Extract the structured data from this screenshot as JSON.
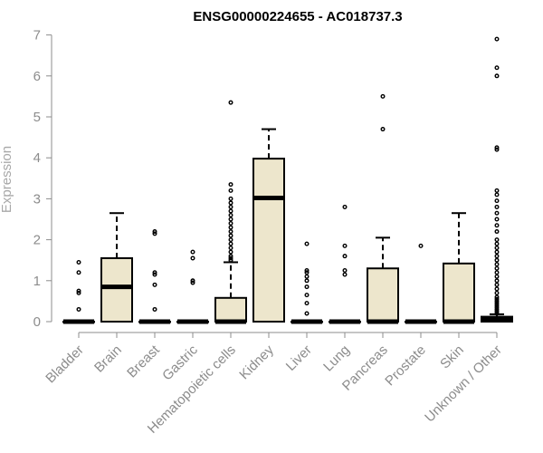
{
  "chart_data": {
    "type": "boxplot",
    "title": "ENSG00000224655 - AC018737.3",
    "ylabel": "Expression",
    "xlabel": "",
    "ylim": [
      0,
      7
    ],
    "yticks": [
      "0",
      "1",
      "2",
      "3",
      "4",
      "5",
      "6",
      "7"
    ],
    "box_fill": "#ede6cc",
    "categories": [
      "Bladder",
      "Brain",
      "Breast",
      "Gastric",
      "Hematopoietic cells",
      "Kidney",
      "Liver",
      "Lung",
      "Pancreas",
      "Prostate",
      "Skin",
      "Unknown / Other"
    ],
    "boxes": [
      {
        "q1": 0,
        "median": 0,
        "q3": 0,
        "whisker_low": 0,
        "whisker_high": 0,
        "outliers": [
          0.3,
          0.7,
          0.75,
          1.2,
          1.45
        ]
      },
      {
        "q1": 0,
        "median": 0.85,
        "q3": 1.55,
        "whisker_low": 0,
        "whisker_high": 2.65,
        "outliers": []
      },
      {
        "q1": 0,
        "median": 0,
        "q3": 0,
        "whisker_low": 0,
        "whisker_high": 0,
        "outliers": [
          0.3,
          0.9,
          1.15,
          1.2,
          2.15,
          2.2
        ]
      },
      {
        "q1": 0,
        "median": 0,
        "q3": 0,
        "whisker_low": 0,
        "whisker_high": 0,
        "outliers": [
          0.95,
          1.0,
          1.55,
          1.7
        ]
      },
      {
        "q1": 0,
        "median": 0,
        "q3": 0.58,
        "whisker_low": 0,
        "whisker_high": 1.45,
        "outliers": [
          1.5,
          1.55,
          1.6,
          1.7,
          1.8,
          1.9,
          2.0,
          2.1,
          2.2,
          2.3,
          2.4,
          2.5,
          2.6,
          2.7,
          2.8,
          2.9,
          3.0,
          3.2,
          3.35,
          5.35
        ]
      },
      {
        "q1": 0,
        "median": 3.02,
        "q3": 3.98,
        "whisker_low": 0,
        "whisker_high": 4.7,
        "outliers": []
      },
      {
        "q1": 0,
        "median": 0,
        "q3": 0,
        "whisker_low": 0,
        "whisker_high": 0,
        "outliers": [
          0.2,
          0.45,
          0.65,
          0.85,
          1.0,
          1.1,
          1.2,
          1.25,
          1.9
        ]
      },
      {
        "q1": 0,
        "median": 0,
        "q3": 0,
        "whisker_low": 0,
        "whisker_high": 0,
        "outliers": [
          1.15,
          1.25,
          1.6,
          1.85,
          2.8
        ]
      },
      {
        "q1": 0,
        "median": 0,
        "q3": 1.3,
        "whisker_low": 0,
        "whisker_high": 2.05,
        "outliers": [
          4.7,
          5.5
        ]
      },
      {
        "q1": 0,
        "median": 0,
        "q3": 0,
        "whisker_low": 0,
        "whisker_high": 0,
        "outliers": [
          1.85
        ]
      },
      {
        "q1": 0,
        "median": 0,
        "q3": 1.42,
        "whisker_low": 0,
        "whisker_high": 2.65,
        "outliers": []
      },
      {
        "q1": 0,
        "median": 0.05,
        "q3": 0.12,
        "whisker_low": 0,
        "whisker_high": 0.18,
        "outliers": [
          0.2,
          0.25,
          0.3,
          0.35,
          0.4,
          0.45,
          0.5,
          0.55,
          0.6,
          0.7,
          0.8,
          0.9,
          1.0,
          1.1,
          1.2,
          1.3,
          1.4,
          1.5,
          1.6,
          1.7,
          1.8,
          1.9,
          2.0,
          2.2,
          2.35,
          2.5,
          2.65,
          2.8,
          2.95,
          3.1,
          3.2,
          4.2,
          4.25,
          6.0,
          6.2,
          6.9
        ]
      }
    ]
  }
}
